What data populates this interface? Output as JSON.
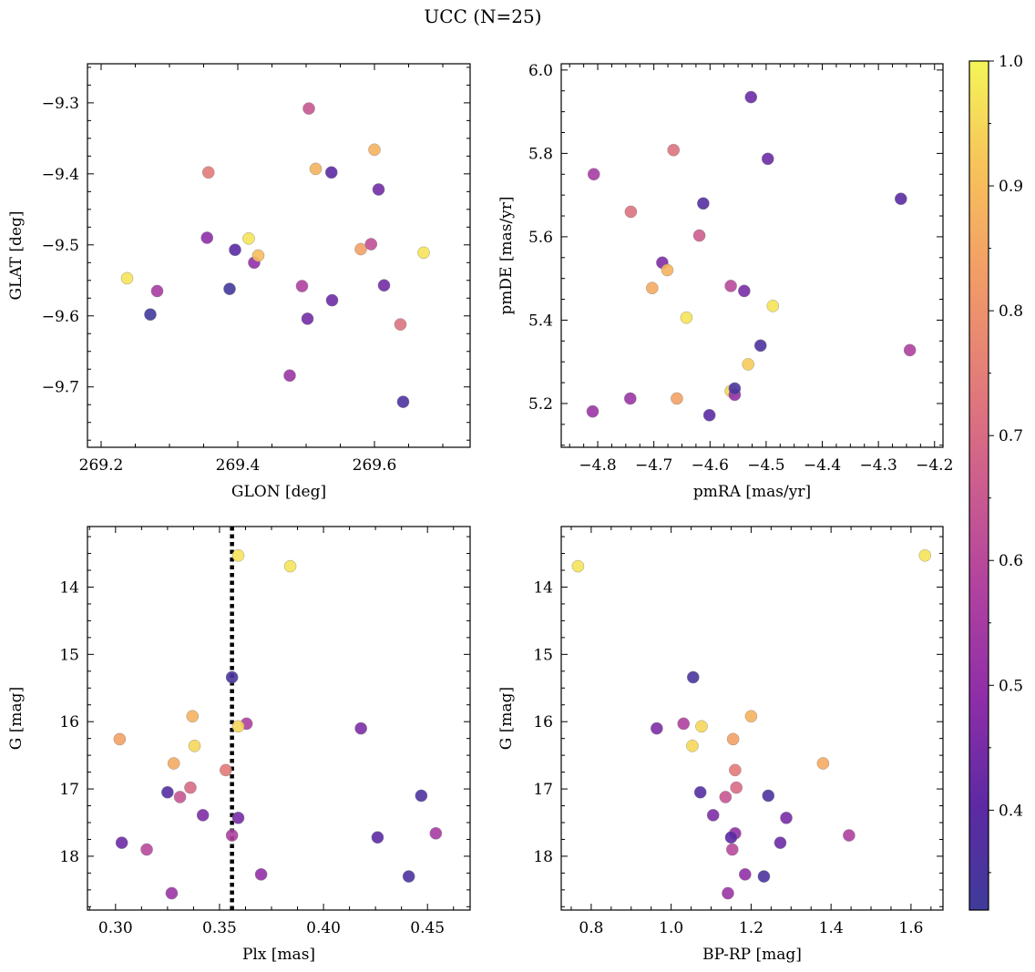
{
  "figure_title": "UCC (N=25)",
  "colorbar": {
    "ticks": [
      "0.4",
      "0.5",
      "0.6",
      "0.7",
      "0.8",
      "0.9",
      "1.0"
    ],
    "tick_values": [
      0.4,
      0.5,
      0.6,
      0.7,
      0.8,
      0.9,
      1.0
    ],
    "range": [
      0.32,
      1.0
    ],
    "colormap": "plasma"
  },
  "chart_data": [
    {
      "type": "scatter",
      "title": "",
      "xlabel": "GLON [deg]",
      "ylabel": "GLAT [deg]",
      "xlim": [
        269.18,
        269.74
      ],
      "ylim": [
        -9.785,
        -9.245
      ],
      "xticks": [
        {
          "value": 269.2,
          "label": "269.2"
        },
        {
          "value": 269.4,
          "label": "269.4"
        },
        {
          "value": 269.6,
          "label": "269.6"
        }
      ],
      "yticks": [
        {
          "value": -9.3,
          "label": "−9.3"
        },
        {
          "value": -9.4,
          "label": "−9.4"
        },
        {
          "value": -9.5,
          "label": "−9.5"
        },
        {
          "value": -9.6,
          "label": "−9.6"
        },
        {
          "value": -9.7,
          "label": "−9.7"
        }
      ],
      "points": [
        {
          "x": 269.238,
          "y": -9.547,
          "c": 0.97
        },
        {
          "x": 269.272,
          "y": -9.598,
          "c": 0.33
        },
        {
          "x": 269.282,
          "y": -9.565,
          "c": 0.55
        },
        {
          "x": 269.355,
          "y": -9.49,
          "c": 0.49
        },
        {
          "x": 269.357,
          "y": -9.398,
          "c": 0.74
        },
        {
          "x": 269.388,
          "y": -9.562,
          "c": 0.33
        },
        {
          "x": 269.396,
          "y": -9.507,
          "c": 0.4
        },
        {
          "x": 269.416,
          "y": -9.491,
          "c": 0.97
        },
        {
          "x": 269.424,
          "y": -9.525,
          "c": 0.5
        },
        {
          "x": 269.43,
          "y": -9.515,
          "c": 0.9
        },
        {
          "x": 269.476,
          "y": -9.684,
          "c": 0.52
        },
        {
          "x": 269.494,
          "y": -9.558,
          "c": 0.57
        },
        {
          "x": 269.502,
          "y": -9.604,
          "c": 0.44
        },
        {
          "x": 269.504,
          "y": -9.308,
          "c": 0.64
        },
        {
          "x": 269.514,
          "y": -9.393,
          "c": 0.88
        },
        {
          "x": 269.537,
          "y": -9.398,
          "c": 0.4
        },
        {
          "x": 269.538,
          "y": -9.578,
          "c": 0.43
        },
        {
          "x": 269.58,
          "y": -9.506,
          "c": 0.84
        },
        {
          "x": 269.595,
          "y": -9.499,
          "c": 0.62
        },
        {
          "x": 269.6,
          "y": -9.366,
          "c": 0.88
        },
        {
          "x": 269.606,
          "y": -9.422,
          "c": 0.44
        },
        {
          "x": 269.614,
          "y": -9.557,
          "c": 0.44
        },
        {
          "x": 269.638,
          "y": -9.612,
          "c": 0.72
        },
        {
          "x": 269.642,
          "y": -9.721,
          "c": 0.36
        },
        {
          "x": 269.672,
          "y": -9.511,
          "c": 0.97
        }
      ]
    },
    {
      "type": "scatter",
      "title": "",
      "xlabel": "pmRA [mas/yr]",
      "ylabel": "pmDE [mas/yr]",
      "xlim": [
        -4.865,
        -4.185
      ],
      "ylim": [
        5.095,
        6.015
      ],
      "xticks": [
        {
          "value": -4.8,
          "label": "−4.8"
        },
        {
          "value": -4.7,
          "label": "−4.7"
        },
        {
          "value": -4.6,
          "label": "−4.6"
        },
        {
          "value": -4.5,
          "label": "−4.5"
        },
        {
          "value": -4.4,
          "label": "−4.4"
        },
        {
          "value": -4.3,
          "label": "−4.3"
        },
        {
          "value": -4.2,
          "label": "−4.2"
        }
      ],
      "yticks": [
        {
          "value": 5.2,
          "label": "5.2"
        },
        {
          "value": 5.4,
          "label": "5.4"
        },
        {
          "value": 5.6,
          "label": "5.6"
        },
        {
          "value": 5.8,
          "label": "5.8"
        },
        {
          "value": 6.0,
          "label": "6.0"
        }
      ],
      "points": [
        {
          "x": -4.807,
          "y": 5.75,
          "c": 0.55
        },
        {
          "x": -4.809,
          "y": 5.181,
          "c": 0.52
        },
        {
          "x": -4.741,
          "y": 5.66,
          "c": 0.72
        },
        {
          "x": -4.742,
          "y": 5.212,
          "c": 0.52
        },
        {
          "x": -4.685,
          "y": 5.538,
          "c": 0.46
        },
        {
          "x": -4.676,
          "y": 5.52,
          "c": 0.88
        },
        {
          "x": -4.703,
          "y": 5.477,
          "c": 0.86
        },
        {
          "x": -4.665,
          "y": 5.808,
          "c": 0.72
        },
        {
          "x": -4.659,
          "y": 5.212,
          "c": 0.84
        },
        {
          "x": -4.642,
          "y": 5.406,
          "c": 0.97
        },
        {
          "x": -4.619,
          "y": 5.603,
          "c": 0.66
        },
        {
          "x": -4.612,
          "y": 5.68,
          "c": 0.38
        },
        {
          "x": -4.601,
          "y": 5.172,
          "c": 0.4
        },
        {
          "x": -4.563,
          "y": 5.482,
          "c": 0.6
        },
        {
          "x": -4.563,
          "y": 5.23,
          "c": 0.95
        },
        {
          "x": -4.556,
          "y": 5.221,
          "c": 0.5
        },
        {
          "x": -4.556,
          "y": 5.236,
          "c": 0.35
        },
        {
          "x": -4.539,
          "y": 5.47,
          "c": 0.45
        },
        {
          "x": -4.532,
          "y": 5.294,
          "c": 0.93
        },
        {
          "x": -4.527,
          "y": 5.935,
          "c": 0.43
        },
        {
          "x": -4.51,
          "y": 5.339,
          "c": 0.36
        },
        {
          "x": -4.497,
          "y": 5.787,
          "c": 0.43
        },
        {
          "x": -4.488,
          "y": 5.434,
          "c": 0.97
        },
        {
          "x": -4.26,
          "y": 5.691,
          "c": 0.4
        },
        {
          "x": -4.244,
          "y": 5.328,
          "c": 0.57
        }
      ]
    },
    {
      "type": "scatter",
      "title": "",
      "xlabel": "Plx [mas]",
      "ylabel": "G [mag]",
      "xlim": [
        0.2865,
        0.4705
      ],
      "ylim": [
        18.8,
        13.1
      ],
      "y_inverted": true,
      "vline": {
        "x": 0.356,
        "style": "dotted"
      },
      "xticks": [
        {
          "value": 0.3,
          "label": "0.30"
        },
        {
          "value": 0.35,
          "label": "0.35"
        },
        {
          "value": 0.4,
          "label": "0.40"
        },
        {
          "value": 0.45,
          "label": "0.45"
        }
      ],
      "yticks": [
        {
          "value": 14,
          "label": "14"
        },
        {
          "value": 15,
          "label": "15"
        },
        {
          "value": 16,
          "label": "16"
        },
        {
          "value": 17,
          "label": "17"
        },
        {
          "value": 18,
          "label": "18"
        }
      ],
      "points": [
        {
          "x": 0.359,
          "y": 13.53,
          "c": 0.97
        },
        {
          "x": 0.384,
          "y": 13.69,
          "c": 0.97
        },
        {
          "x": 0.356,
          "y": 15.34,
          "c": 0.35
        },
        {
          "x": 0.337,
          "y": 15.92,
          "c": 0.88
        },
        {
          "x": 0.363,
          "y": 16.03,
          "c": 0.57
        },
        {
          "x": 0.359,
          "y": 16.07,
          "c": 0.95
        },
        {
          "x": 0.418,
          "y": 16.1,
          "c": 0.46
        },
        {
          "x": 0.302,
          "y": 16.26,
          "c": 0.84
        },
        {
          "x": 0.338,
          "y": 16.36,
          "c": 0.95
        },
        {
          "x": 0.328,
          "y": 16.62,
          "c": 0.86
        },
        {
          "x": 0.353,
          "y": 16.72,
          "c": 0.74
        },
        {
          "x": 0.336,
          "y": 16.98,
          "c": 0.7
        },
        {
          "x": 0.325,
          "y": 17.05,
          "c": 0.38
        },
        {
          "x": 0.447,
          "y": 17.1,
          "c": 0.36
        },
        {
          "x": 0.331,
          "y": 17.12,
          "c": 0.64
        },
        {
          "x": 0.342,
          "y": 17.39,
          "c": 0.46
        },
        {
          "x": 0.359,
          "y": 17.43,
          "c": 0.45
        },
        {
          "x": 0.454,
          "y": 17.66,
          "c": 0.55
        },
        {
          "x": 0.356,
          "y": 17.69,
          "c": 0.57
        },
        {
          "x": 0.426,
          "y": 17.72,
          "c": 0.4
        },
        {
          "x": 0.303,
          "y": 17.8,
          "c": 0.43
        },
        {
          "x": 0.315,
          "y": 17.9,
          "c": 0.6
        },
        {
          "x": 0.37,
          "y": 18.27,
          "c": 0.5
        },
        {
          "x": 0.441,
          "y": 18.3,
          "c": 0.36
        },
        {
          "x": 0.327,
          "y": 18.55,
          "c": 0.52
        }
      ]
    },
    {
      "type": "scatter",
      "title": "",
      "xlabel": "BP-RP [mag]",
      "ylabel": "G [mag]",
      "xlim": [
        0.725,
        1.68
      ],
      "ylim": [
        18.8,
        13.1
      ],
      "y_inverted": true,
      "xticks": [
        {
          "value": 0.8,
          "label": "0.8"
        },
        {
          "value": 1.0,
          "label": "1.0"
        },
        {
          "value": 1.2,
          "label": "1.2"
        },
        {
          "value": 1.4,
          "label": "1.4"
        },
        {
          "value": 1.6,
          "label": "1.6"
        }
      ],
      "yticks": [
        {
          "value": 14,
          "label": "14"
        },
        {
          "value": 15,
          "label": "15"
        },
        {
          "value": 16,
          "label": "16"
        },
        {
          "value": 17,
          "label": "17"
        },
        {
          "value": 18,
          "label": "18"
        }
      ],
      "points": [
        {
          "x": 1.635,
          "y": 13.53,
          "c": 0.97
        },
        {
          "x": 0.767,
          "y": 13.69,
          "c": 0.97
        },
        {
          "x": 1.055,
          "y": 15.34,
          "c": 0.35
        },
        {
          "x": 1.2,
          "y": 15.92,
          "c": 0.88
        },
        {
          "x": 1.031,
          "y": 16.03,
          "c": 0.57
        },
        {
          "x": 1.076,
          "y": 16.07,
          "c": 0.95
        },
        {
          "x": 0.964,
          "y": 16.1,
          "c": 0.46
        },
        {
          "x": 1.155,
          "y": 16.26,
          "c": 0.84
        },
        {
          "x": 1.053,
          "y": 16.36,
          "c": 0.95
        },
        {
          "x": 1.38,
          "y": 16.62,
          "c": 0.86
        },
        {
          "x": 1.16,
          "y": 16.72,
          "c": 0.74
        },
        {
          "x": 1.163,
          "y": 16.98,
          "c": 0.7
        },
        {
          "x": 1.073,
          "y": 17.05,
          "c": 0.38
        },
        {
          "x": 1.243,
          "y": 17.1,
          "c": 0.36
        },
        {
          "x": 1.136,
          "y": 17.12,
          "c": 0.64
        },
        {
          "x": 1.105,
          "y": 17.39,
          "c": 0.46
        },
        {
          "x": 1.288,
          "y": 17.43,
          "c": 0.45
        },
        {
          "x": 1.445,
          "y": 17.69,
          "c": 0.57
        },
        {
          "x": 1.16,
          "y": 17.66,
          "c": 0.5
        },
        {
          "x": 1.15,
          "y": 17.72,
          "c": 0.4
        },
        {
          "x": 1.273,
          "y": 17.8,
          "c": 0.43
        },
        {
          "x": 1.153,
          "y": 17.9,
          "c": 0.6
        },
        {
          "x": 1.185,
          "y": 18.27,
          "c": 0.5
        },
        {
          "x": 1.232,
          "y": 18.3,
          "c": 0.36
        },
        {
          "x": 1.142,
          "y": 18.55,
          "c": 0.52
        }
      ]
    }
  ]
}
